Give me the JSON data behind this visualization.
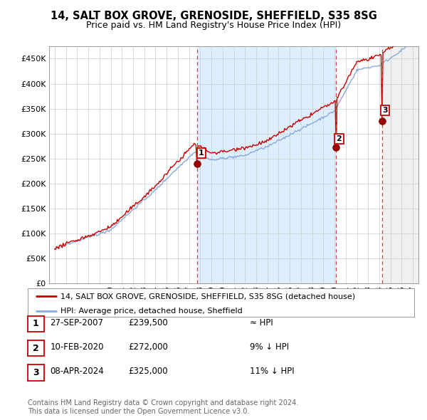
{
  "title_line1": "14, SALT BOX GROVE, GRENOSIDE, SHEFFIELD, S35 8SG",
  "title_line2": "Price paid vs. HM Land Registry's House Price Index (HPI)",
  "ylabel_ticks": [
    "£0",
    "£50K",
    "£100K",
    "£150K",
    "£200K",
    "£250K",
    "£300K",
    "£350K",
    "£400K",
    "£450K"
  ],
  "ytick_values": [
    0,
    50000,
    100000,
    150000,
    200000,
    250000,
    300000,
    350000,
    400000,
    450000
  ],
  "ylim": [
    0,
    475000
  ],
  "xlim_start": 1994.5,
  "xlim_end": 2027.5,
  "hpi_color": "#88aadd",
  "price_color": "#cc0000",
  "marker_color": "#990000",
  "vline_color": "#cc4444",
  "shade_color": "#ddeeff",
  "hatch_color": "#cccccc",
  "sale_points": [
    {
      "date_num": 2007.74,
      "price": 239500,
      "label": "1"
    },
    {
      "date_num": 2020.11,
      "price": 272000,
      "label": "2"
    },
    {
      "date_num": 2024.27,
      "price": 325000,
      "label": "3"
    }
  ],
  "vline_dates": [
    2007.74,
    2020.11,
    2024.27
  ],
  "legend_line1": "14, SALT BOX GROVE, GRENOSIDE, SHEFFIELD, S35 8SG (detached house)",
  "legend_line2": "HPI: Average price, detached house, Sheffield",
  "table_rows": [
    {
      "num": "1",
      "date": "27-SEP-2007",
      "price": "£239,500",
      "hpi": "≈ HPI"
    },
    {
      "num": "2",
      "date": "10-FEB-2020",
      "price": "£272,000",
      "hpi": "9% ↓ HPI"
    },
    {
      "num": "3",
      "date": "08-APR-2024",
      "price": "£325,000",
      "hpi": "11% ↓ HPI"
    }
  ],
  "footnote": "Contains HM Land Registry data © Crown copyright and database right 2024.\nThis data is licensed under the Open Government Licence v3.0.",
  "background_color": "#ffffff",
  "grid_color": "#cccccc"
}
